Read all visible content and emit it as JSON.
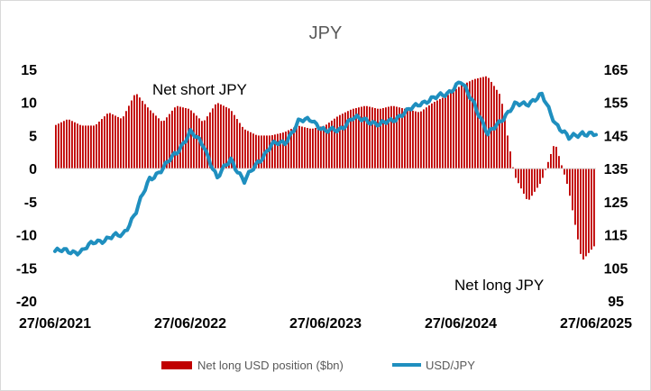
{
  "chart_data": {
    "type": "bar+line",
    "title": "JPY",
    "x_tick_labels": [
      "27/06/2021",
      "27/06/2022",
      "27/06/2023",
      "27/06/2024",
      "27/06/2025"
    ],
    "x_range": [
      "2021-06-27",
      "2025-06-27"
    ],
    "y_left": {
      "range": [
        -20,
        15
      ],
      "ticks": [
        15,
        10,
        5,
        0,
        -5,
        -10,
        -15,
        -20
      ]
    },
    "y_right": {
      "range": [
        95,
        165
      ],
      "ticks": [
        165,
        155,
        145,
        135,
        125,
        115,
        105,
        95
      ]
    },
    "grid": false,
    "legend_position": "bottom",
    "annotations": [
      "Net short JPY",
      "Net long JPY"
    ],
    "bar_color": "#c00000",
    "line_color": "#1f8fbf",
    "series": [
      {
        "name": "Net long USD position ($bn)",
        "type": "bar",
        "axis": "left",
        "t": [
          0.0,
          0.1,
          0.2,
          0.3,
          0.4,
          0.5,
          0.6,
          0.7,
          0.8,
          0.9,
          1.0,
          1.1,
          1.2,
          1.3,
          1.4,
          1.5,
          1.6,
          1.7,
          1.8,
          1.9,
          2.0,
          2.1,
          2.2,
          2.3,
          2.4,
          2.5,
          2.6,
          2.7,
          2.8,
          2.9,
          3.0,
          3.1,
          3.2,
          3.3,
          3.4,
          3.5,
          3.6,
          3.7,
          3.8,
          3.9,
          4.0
        ],
        "values": [
          6.5,
          7.5,
          6.5,
          6.5,
          8.5,
          7.5,
          11.5,
          9,
          7,
          9.5,
          9,
          7,
          10,
          9,
          6,
          5,
          5,
          5.5,
          6.5,
          6,
          6.5,
          8,
          9,
          9.5,
          9,
          9.5,
          9,
          8.5,
          10,
          11,
          12.5,
          13.5,
          14,
          11,
          -1,
          -5,
          -2,
          4,
          -3,
          -14,
          -11.5
        ]
      },
      {
        "name": "USD/JPY",
        "type": "line",
        "axis": "right",
        "t": [
          0.0,
          0.1,
          0.2,
          0.3,
          0.4,
          0.5,
          0.6,
          0.7,
          0.8,
          0.9,
          1.0,
          1.1,
          1.2,
          1.3,
          1.4,
          1.5,
          1.6,
          1.7,
          1.8,
          1.9,
          2.0,
          2.1,
          2.2,
          2.3,
          2.4,
          2.5,
          2.6,
          2.7,
          2.8,
          2.9,
          3.0,
          3.1,
          3.2,
          3.3,
          3.4,
          3.5,
          3.6,
          3.7,
          3.8,
          3.9,
          4.0
        ],
        "values": [
          110,
          110,
          110,
          113,
          114,
          115,
          122,
          132,
          135,
          140,
          146,
          142,
          132,
          138,
          131,
          137,
          142,
          143,
          149,
          150,
          146,
          147,
          150,
          150,
          148,
          150,
          152,
          155,
          156,
          158,
          161,
          155,
          145,
          150,
          154,
          155,
          157,
          149,
          144,
          146,
          145
        ]
      }
    ]
  },
  "legend": {
    "bar_label": "Net long USD position ($bn)",
    "line_label": "USD/JPY"
  }
}
